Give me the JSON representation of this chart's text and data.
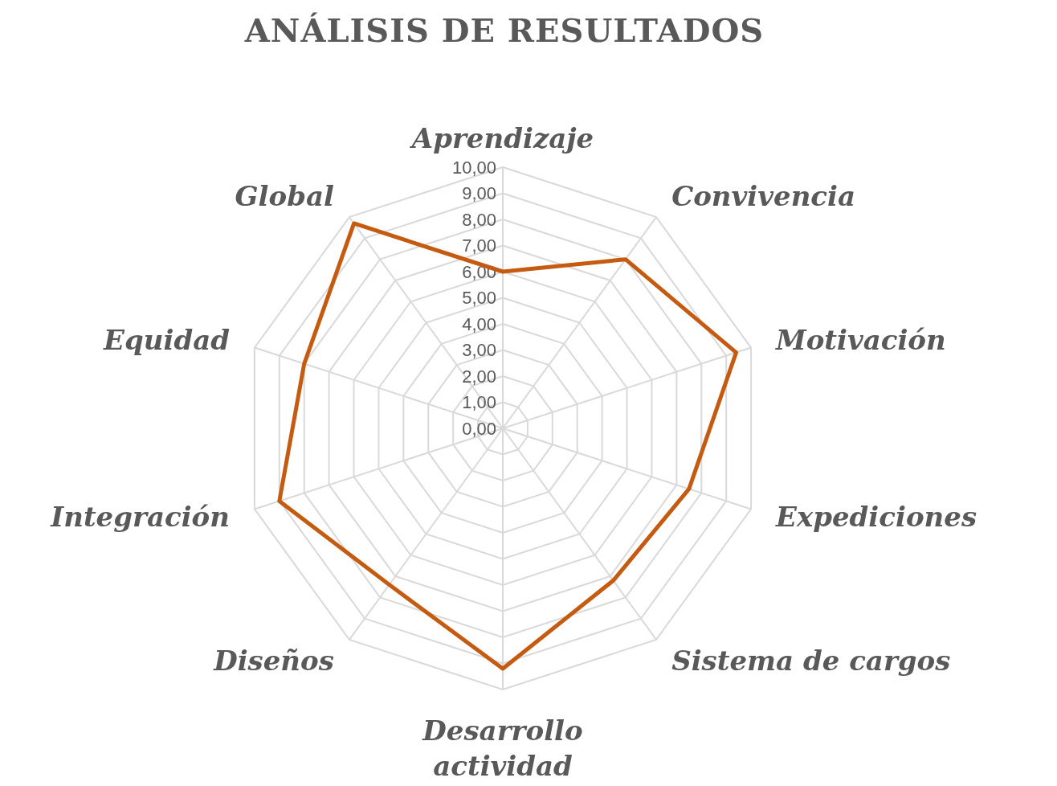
{
  "chart_data": {
    "type": "radar",
    "title": "ANÁLISIS DE RESULTADOS",
    "categories": [
      "Aprendizaje",
      "Convivencia",
      "Motivación",
      "Expediciones",
      "Sistema de cargos",
      "Desarrollo actividad",
      "Diseños",
      "Integración",
      "Equidad",
      "Global"
    ],
    "series": [
      {
        "color": "#c55a11",
        "values": [
          6.0,
          8.0,
          9.4,
          7.5,
          7.2,
          9.2,
          7.4,
          9.0,
          8.0,
          9.7
        ]
      }
    ],
    "ylim": [
      0,
      10
    ],
    "yticks": [
      {
        "value": 0,
        "label": "0,00"
      },
      {
        "value": 1,
        "label": "1,00"
      },
      {
        "value": 2,
        "label": "2,00"
      },
      {
        "value": 3,
        "label": "3,00"
      },
      {
        "value": 4,
        "label": "4,00"
      },
      {
        "value": 5,
        "label": "5,00"
      },
      {
        "value": 6,
        "label": "6,00"
      },
      {
        "value": 7,
        "label": "7,00"
      },
      {
        "value": 8,
        "label": "8,00"
      },
      {
        "value": 9,
        "label": "9,00"
      },
      {
        "value": 10,
        "label": "10,00"
      }
    ],
    "grid": true,
    "marker": "none",
    "line_style": "solid"
  }
}
